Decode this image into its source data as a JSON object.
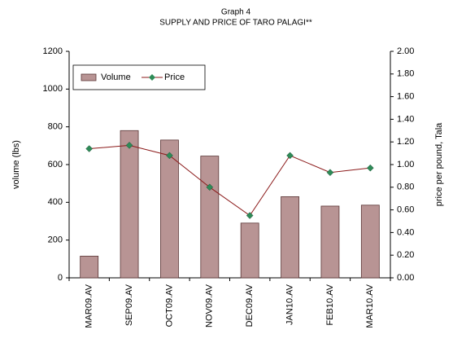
{
  "chart_data": {
    "type": "bar_line",
    "title": "Graph 4",
    "subtitle": "SUPPLY AND PRICE OF TARO PALAGI**",
    "y_label": "volume (lbs)",
    "y2_label": "price per pound, Tala",
    "categories": [
      "MAR09.AV",
      "SEP09.AV",
      "OCT09.AV",
      "NOV09.AV",
      "DEC09.AV",
      "JAN10.AV",
      "FEB10.AV",
      "MAR10.AV"
    ],
    "series": [
      {
        "name": "Volume",
        "type": "bar",
        "color": "#b89494",
        "values": [
          115,
          780,
          730,
          645,
          290,
          430,
          380,
          385
        ]
      },
      {
        "name": "Price",
        "type": "line",
        "axis": "y2",
        "color": "#8b1a1a",
        "marker_color": "#2e8b57",
        "values": [
          1.14,
          1.17,
          1.08,
          0.8,
          0.55,
          1.08,
          0.93,
          0.97
        ]
      }
    ],
    "ylim": [
      0,
      1200
    ],
    "yticks": [
      0,
      200,
      400,
      600,
      800,
      1000,
      1200
    ],
    "y2lim": [
      0,
      2
    ],
    "y2ticks": [
      {
        "value": 0,
        "label": "0.00"
      },
      {
        "value": 0.2,
        "label": "0.20"
      },
      {
        "value": 0.4,
        "label": "0.40"
      },
      {
        "value": 0.6,
        "label": "0.60"
      },
      {
        "value": 0.8,
        "label": "0.80"
      },
      {
        "value": 1,
        "label": "1.00"
      },
      {
        "value": 1.2,
        "label": "1.20"
      },
      {
        "value": 1.4,
        "label": "1.40"
      },
      {
        "value": 1.6,
        "label": "1.60"
      },
      {
        "value": 1.8,
        "label": "1.80"
      },
      {
        "value": 2,
        "label": "2.00"
      }
    ],
    "legend": "top-left"
  }
}
